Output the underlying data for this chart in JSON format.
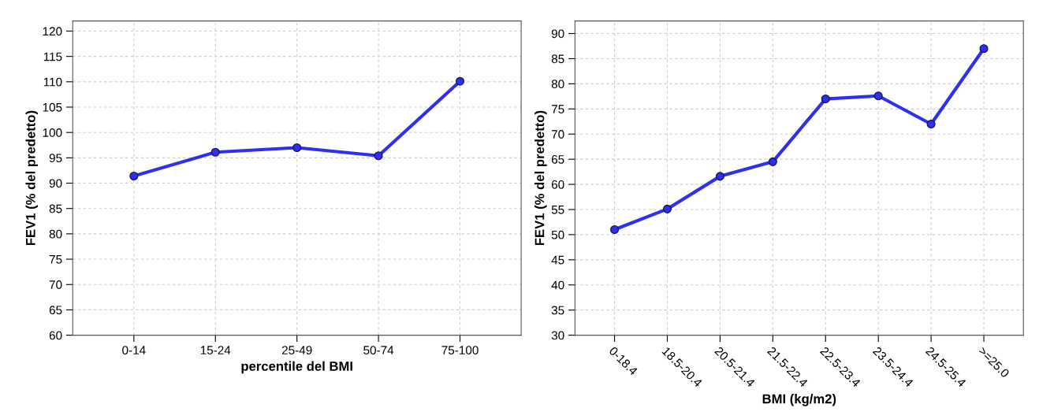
{
  "chart_data": [
    {
      "type": "line",
      "xlabel": "percentile del BMI",
      "ylabel": "FEV1 (% del predetto)",
      "categories": [
        "0-14",
        "15-24",
        "25-49",
        "50-74",
        "75-100"
      ],
      "series": [
        {
          "color": "#2f2ff0",
          "values": [
            91.4,
            96.1,
            97.0,
            95.4,
            110.1
          ]
        }
      ],
      "ylim": [
        60,
        122
      ],
      "yticks": [
        60,
        65,
        70,
        75,
        80,
        85,
        90,
        95,
        100,
        105,
        110,
        115,
        120
      ],
      "grid": true,
      "marker": "circle",
      "line_style": "solid"
    },
    {
      "type": "line",
      "xlabel": "BMI (kg/m2)",
      "ylabel": "FEV1 (% del predetto)",
      "categories": [
        "0-18.4",
        "18.5-20.4",
        "20.5-21.4",
        "21.5-22.4",
        "22.5-23.4",
        "23.5-24.4",
        "24.5-25.4",
        ">=25.0"
      ],
      "series": [
        {
          "color": "#2f2ff0",
          "values": [
            51.0,
            55.1,
            61.6,
            64.5,
            77.0,
            77.6,
            72.0,
            87.0
          ]
        }
      ],
      "ylim": [
        30,
        92.5
      ],
      "yticks": [
        30,
        35,
        40,
        45,
        50,
        55,
        60,
        65,
        70,
        75,
        80,
        85,
        90
      ],
      "grid": true,
      "marker": "circle",
      "line_style": "solid"
    }
  ]
}
